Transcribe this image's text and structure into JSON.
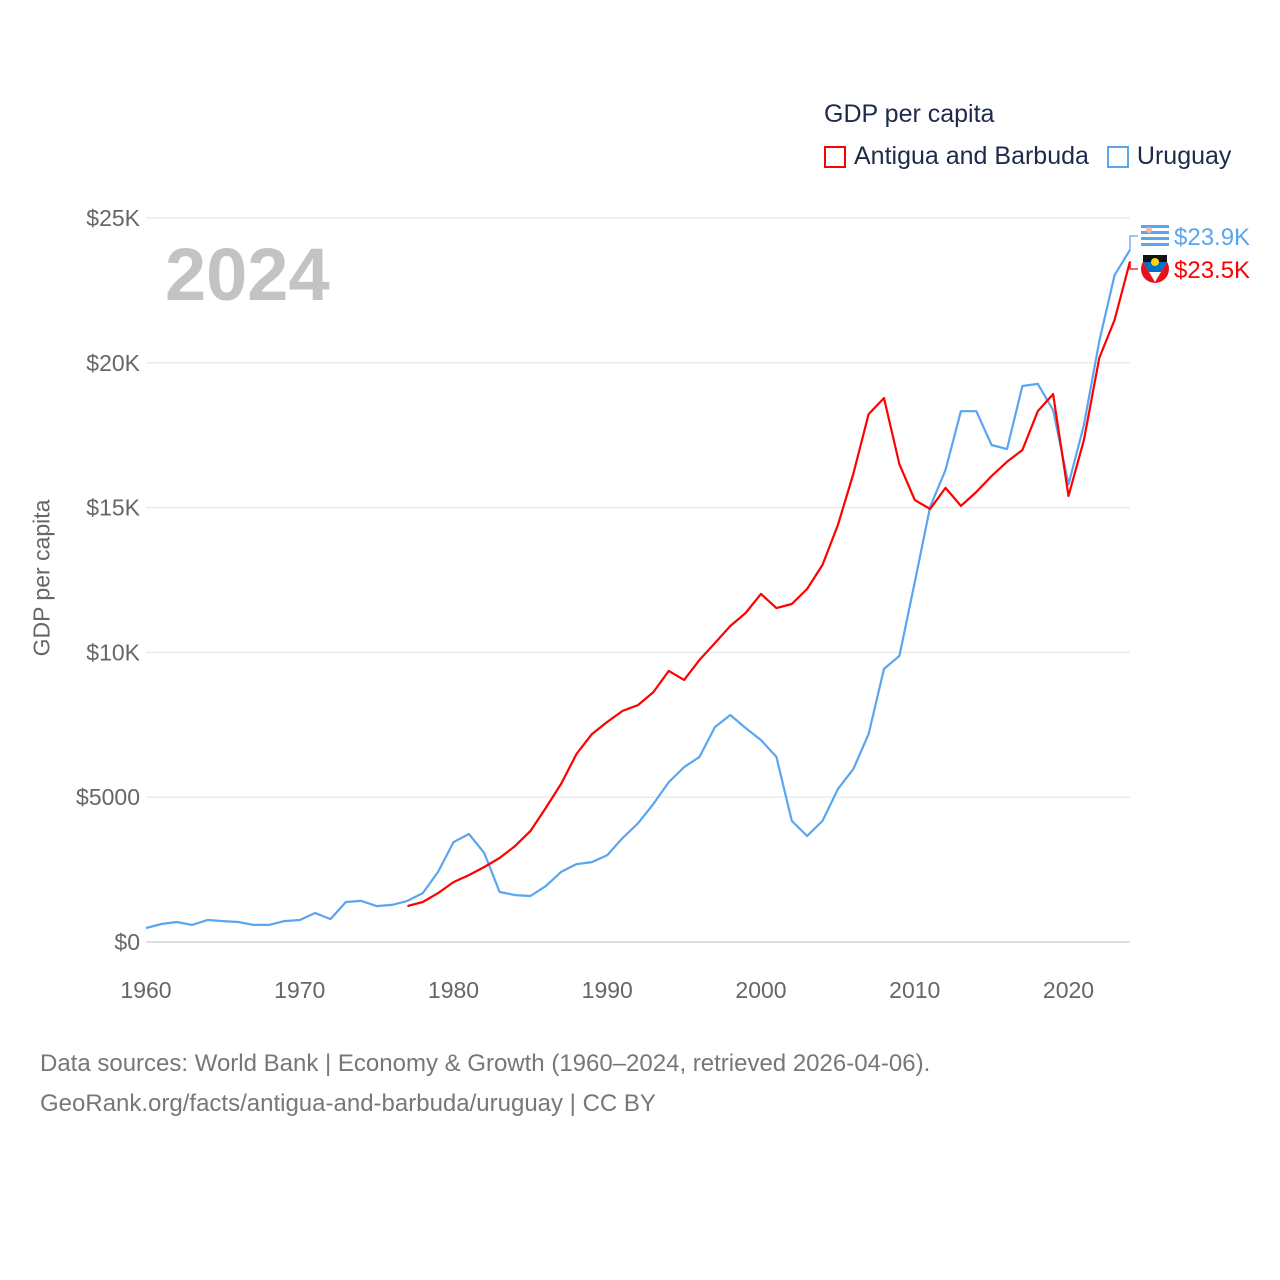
{
  "legend": {
    "title": "GDP per capita",
    "items": [
      {
        "label": "Antigua and Barbuda",
        "color": "#ff0000"
      },
      {
        "label": "Uruguay",
        "color": "#5aa5f0"
      }
    ]
  },
  "year_label": "2024",
  "source": {
    "line1": "Data sources: World Bank | Economy & Growth (1960–2024, retrieved 2026-04-06).",
    "line2": "GeoRank.org/facts/antigua-and-barbuda/uruguay | CC BY"
  },
  "chart_data": {
    "type": "line",
    "title": "GDP per capita",
    "xlabel": "",
    "ylabel": "GDP per capita",
    "xlim": [
      1960,
      2024
    ],
    "ylim": [
      0,
      25000
    ],
    "grid": true,
    "legend_position": "top-right",
    "x_ticks": [
      1960,
      1970,
      1980,
      1990,
      2000,
      2010,
      2020
    ],
    "x_tick_labels": [
      "1960",
      "1970",
      "1980",
      "1990",
      "2000",
      "2010",
      "2020"
    ],
    "y_ticks": [
      0,
      5000,
      10000,
      15000,
      20000,
      25000
    ],
    "y_tick_labels": [
      "$0",
      "$5000",
      "$10K",
      "$15K",
      "$20K",
      "$25K"
    ],
    "series": [
      {
        "name": "Antigua and Barbuda",
        "color": "#ff0000",
        "end_label": "$23.5K",
        "start_year": 1977,
        "values": [
          1240,
          1380,
          1690,
          2070,
          2310,
          2590,
          2900,
          3310,
          3830,
          4630,
          5460,
          6490,
          7180,
          7600,
          7980,
          8180,
          8630,
          9360,
          9050,
          9740,
          10320,
          10910,
          11360,
          12020,
          11530,
          11670,
          12190,
          13020,
          14400,
          16160,
          18230,
          18780,
          16500,
          15260,
          14950,
          15680,
          15060,
          15540,
          16090,
          16580,
          16990,
          18330,
          18920,
          15400,
          17330,
          20170,
          21480,
          23500
        ]
      },
      {
        "name": "Uruguay",
        "color": "#5aa5f0",
        "end_label": "$23.9K",
        "start_year": 1960,
        "values": [
          480,
          620,
          690,
          590,
          760,
          720,
          690,
          590,
          590,
          720,
          760,
          1000,
          790,
          1380,
          1420,
          1240,
          1280,
          1420,
          1690,
          2420,
          3450,
          3730,
          3070,
          1730,
          1620,
          1590,
          1930,
          2420,
          2690,
          2760,
          3000,
          3590,
          4100,
          4770,
          5520,
          6040,
          6390,
          7420,
          7840,
          7390,
          6970,
          6390,
          4180,
          3660,
          4180,
          5280,
          5970,
          7180,
          9430,
          9880,
          12430,
          15020,
          16300,
          18330,
          18330,
          17160,
          17020,
          19200,
          19270,
          18370,
          15800,
          17850,
          20750,
          23030,
          23900
        ]
      }
    ]
  }
}
